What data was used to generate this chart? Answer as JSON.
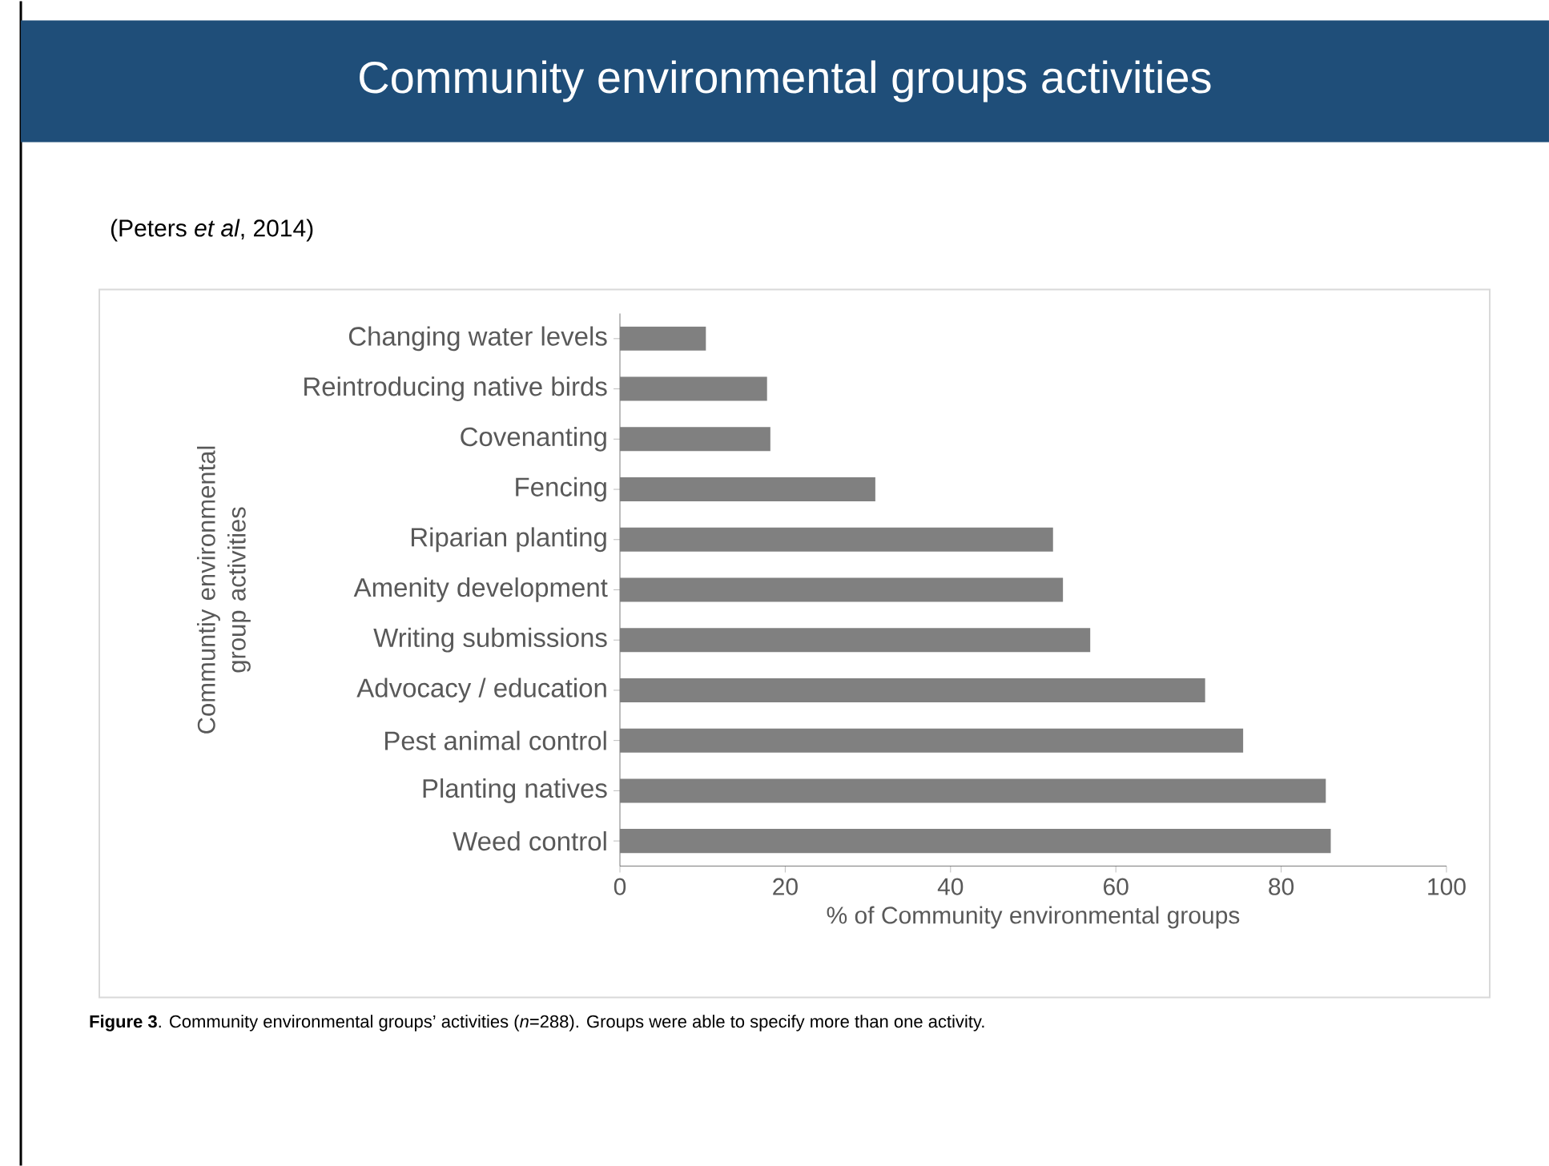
{
  "chart_data": {
    "type": "bar",
    "orientation": "horizontal",
    "title": "Community environmental groups activities",
    "categories": [
      "Changing water levels",
      "Reintroducing native birds",
      "Covenanting",
      "Fencing",
      "Riparian planting",
      "Amenity development",
      "Writing submissions",
      "Advocacy / education",
      "Pest animal control",
      "Planting natives",
      "Weed control"
    ],
    "values": [
      10.4,
      17.8,
      18.2,
      30.9,
      52.4,
      53.6,
      56.9,
      70.8,
      75.4,
      85.4,
      86.0
    ],
    "color": "#808080",
    "xlim": [
      0,
      100
    ],
    "xticks": [
      0,
      20,
      40,
      60,
      80,
      100
    ],
    "xlabel": "% of Community environmental groups",
    "ylabel": "Communtiy environmental group activities",
    "annotations": [
      "(Peters *et al*, 2014)",
      "**Figure 3**. Community environmental groups’ activities (*n*=288). Groups were able to specify more than one activity."
    ]
  }
}
